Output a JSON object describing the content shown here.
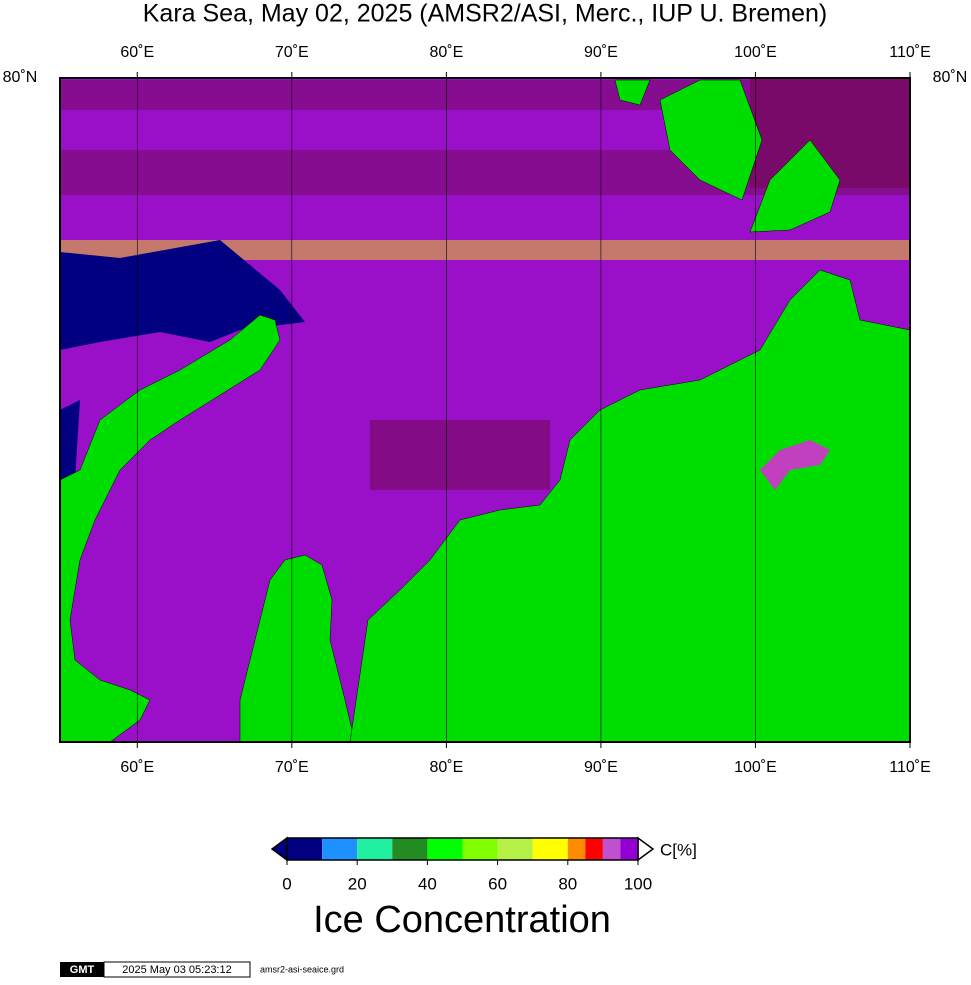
{
  "title": "Kara Sea, May 02, 2025 (AMSR2/ASI, Merc., IUP U. Bremen)",
  "map": {
    "xlim": [
      55,
      110
    ],
    "xticks": [
      {
        "value": 60,
        "label": "60˚E"
      },
      {
        "value": 70,
        "label": "70˚E"
      },
      {
        "value": 80,
        "label": "80˚E"
      },
      {
        "value": 90,
        "label": "90˚E"
      },
      {
        "value": 100,
        "label": "100˚E"
      },
      {
        "value": 110,
        "label": "110˚E"
      }
    ],
    "lat_label": {
      "value": 80,
      "label": "80˚N"
    }
  },
  "colorbar": {
    "bins": [
      0,
      10,
      20,
      30,
      40,
      50,
      60,
      70,
      80,
      85,
      90,
      95,
      100
    ],
    "colors": [
      "#000080",
      "#1e90ff",
      "#20f0a0",
      "#228b22",
      "#00ff00",
      "#7fff00",
      "#b4f046",
      "#ffff00",
      "#ff8c00",
      "#ff0000",
      "#c050d0",
      "#9400d3"
    ],
    "ticks": [
      0,
      20,
      40,
      60,
      80,
      100
    ],
    "unit": "C[%]",
    "label": "Ice Concentration"
  },
  "footer": {
    "logo": "GMT",
    "timestamp": "2025 May 03 05:23:12",
    "file": "amsr2-asi-seaice.grd"
  }
}
